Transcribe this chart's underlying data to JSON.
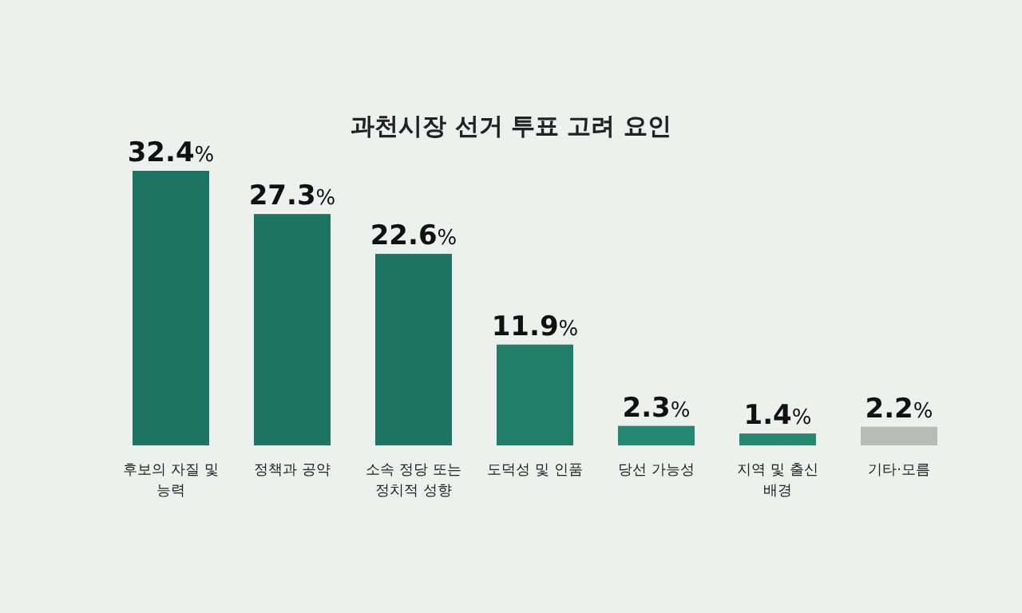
{
  "chart_data": {
    "type": "bar",
    "title": "과천시장 선거 투표 고려 요인",
    "categories": [
      "후보의 자질 및 능력",
      "정책과 공약",
      "소속 정당 또는 정치적 성향",
      "도덕성 및 인품",
      "당선 가능성",
      "지역 및 출신 배경",
      "기타·모름"
    ],
    "values": [
      32.4,
      27.3,
      22.6,
      11.9,
      2.3,
      1.4,
      2.2
    ],
    "colors": [
      "#1d7462",
      "#1d7462",
      "#1d7462",
      "#1f7e6a",
      "#238771",
      "#238771",
      "#b8bcb8"
    ],
    "value_labels": [
      "32.4%",
      "27.3%",
      "22.6%",
      "11.9%",
      "2.3%",
      "1.4%",
      "2.2%"
    ]
  }
}
